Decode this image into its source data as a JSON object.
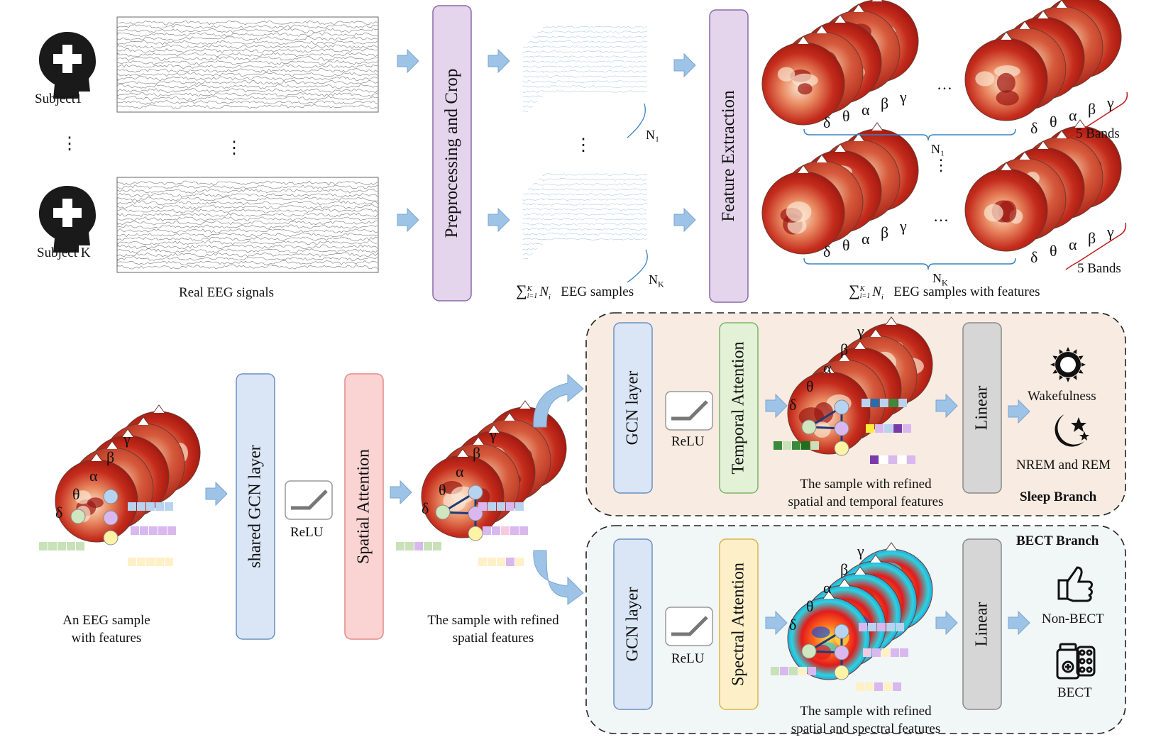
{
  "colors": {
    "arrow": "#9dc3e6",
    "arrow_stroke": "#7ba6d1",
    "purple_box": "#e4d4ec",
    "purple_stroke": "#8a6aa8",
    "blue_box": "#dae6f5",
    "blue_stroke": "#6b8fc2",
    "pink_box": "#fad4d3",
    "pink_stroke": "#e08a88",
    "green_box": "#e3f1d6",
    "green_stroke": "#7fb46a",
    "yellow_box": "#fdf0c8",
    "yellow_stroke": "#d8b64a",
    "gray_box": "#d6d6d6",
    "gray_stroke": "#8a8a8a",
    "sleep_panel": "#f7ebe2",
    "bect_panel": "#f1f6f6",
    "heat_dark": "#b11a12",
    "heat_light": "#fbe4cf",
    "bect_map": "#2d6fd6"
  },
  "top": {
    "subjects": [
      {
        "label": "Subject1",
        "icon": "patient-head-icon"
      },
      {
        "label": "Subject K",
        "icon": "patient-head-icon"
      }
    ],
    "vertical_dots": "⋮",
    "real_eeg_caption": "Real EEG signals",
    "preprocessing_label": "Preprocessing and Crop",
    "n1_label": "N₁",
    "nk_label": "N",
    "nk_sub": "K",
    "eeg_samples_sum": "∑",
    "eeg_samples_limits_top": "K",
    "eeg_samples_limits_bottom": "i=1",
    "eeg_samples_term": "N",
    "eeg_samples_term_sub": "i",
    "eeg_samples_caption": "EEG samples",
    "feature_extraction_label": "Feature Extraction",
    "bands": [
      "δ",
      "θ",
      "α",
      "β",
      "γ"
    ],
    "ellipsis": "…",
    "five_bands": "5 Bands",
    "features_caption": "EEG samples with features",
    "feat_n1": "N₁",
    "feat_nk": "N",
    "feat_nk_sub": "K"
  },
  "bottom": {
    "sample_caption_line1": "An EEG sample",
    "sample_caption_line2": "with features",
    "shared_gcn_label": "shared GCN layer",
    "relu_label": "ReLU",
    "spatial_attention_label": "Spatial Attention",
    "refined_spatial_line1": "The  sample with refined",
    "refined_spatial_line2": "spatial features"
  },
  "sleep_branch": {
    "gcn_label": "GCN layer",
    "relu_label": "ReLU",
    "attention_label": "Temporal Attention",
    "caption_line1": "The sample with refined",
    "caption_line2": "spatial  and temporal features",
    "linear_label": "Linear",
    "outputs": [
      {
        "label": "Wakefulness",
        "icon": "sun-icon"
      },
      {
        "label": "NREM and REM",
        "icon": "moon-stars-icon"
      }
    ],
    "branch_title": "Sleep Branch"
  },
  "bect_branch": {
    "branch_title": "BECT Branch",
    "gcn_label": "GCN layer",
    "relu_label": "ReLU",
    "attention_label": "Spectral Attention",
    "caption_line1": "The sample with refined",
    "caption_line2": "spatial  and spectral features",
    "linear_label": "Linear",
    "outputs": [
      {
        "label": "Non-BECT",
        "icon": "thumbs-up-icon"
      },
      {
        "label": "BECT",
        "icon": "medicine-icon"
      }
    ]
  }
}
